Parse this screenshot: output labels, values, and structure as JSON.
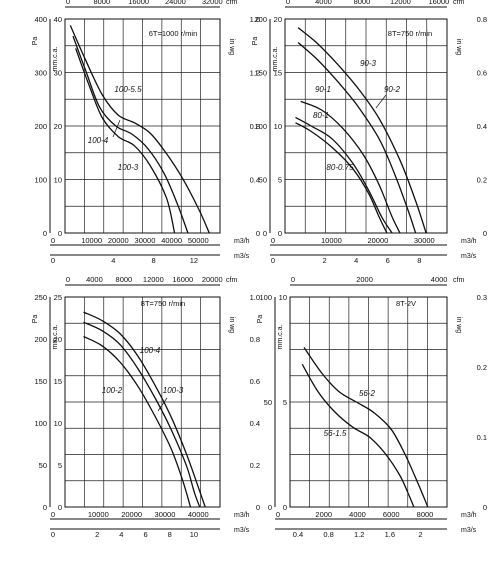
{
  "chart_data": [
    {
      "type": "line",
      "title": "6T=1000 r/min",
      "units": {
        "pa": "Pa",
        "mmca": "mm.c.a.",
        "cfm": "cfm",
        "inwg": "in wg",
        "m3h": "m3/h",
        "m3s": "m3/s"
      },
      "pa_ticks": [
        "400",
        "300",
        "200",
        "100",
        "0"
      ],
      "mm_ticks": [
        "40",
        "30",
        "20",
        "10",
        "0"
      ],
      "inwg_ticks": [
        "1.6",
        "1.2",
        "0.8",
        "0.4",
        "0"
      ],
      "cfm_ticks": [
        "0",
        "8000",
        "16000",
        "24000",
        "32000"
      ],
      "m3h_ticks": [
        "0",
        "10000",
        "20000",
        "30000",
        "40000",
        "50000"
      ],
      "m3s_ticks": [
        "0",
        "4",
        "8",
        "12"
      ],
      "xlim_m3h": [
        0,
        58000
      ],
      "ylim_pa": [
        0,
        400
      ],
      "grid": true,
      "series": [
        {
          "name": "100-5.5",
          "x": [
            2000,
            8000,
            14000,
            20000,
            26000,
            32000,
            38000,
            44000,
            50000,
            54000
          ],
          "y": [
            388,
            320,
            258,
            220,
            206,
            186,
            148,
            102,
            45,
            0
          ]
        },
        {
          "name": "100-4",
          "x": [
            3000,
            8000,
            13000,
            19000,
            25000,
            31000,
            37000,
            42000,
            46000
          ],
          "y": [
            368,
            300,
            235,
            200,
            185,
            158,
            112,
            55,
            0
          ]
        },
        {
          "name": "100-3",
          "x": [
            4000,
            9000,
            14000,
            20000,
            26000,
            32000,
            38000,
            41000
          ],
          "y": [
            345,
            276,
            215,
            180,
            163,
            125,
            65,
            0
          ]
        }
      ]
    },
    {
      "type": "line",
      "title": "8T=750 r/min",
      "units": {
        "pa": "Pa",
        "mmca": "mm.c.a.",
        "cfm": "cfm",
        "inwg": "in wg",
        "m3h": "m3/h",
        "m3s": "m3/s"
      },
      "pa_ticks": [
        "200",
        "150",
        "100",
        "50",
        "0"
      ],
      "mm_ticks": [
        "20",
        "15",
        "10",
        "5",
        "0"
      ],
      "inwg_ticks": [
        "0.8",
        "0.6",
        "0.4",
        "0.2",
        "0"
      ],
      "cfm_ticks": [
        "0",
        "4000",
        "8000",
        "12000",
        "16000"
      ],
      "m3h_ticks": [
        "0",
        "10000",
        "20000",
        "30000"
      ],
      "m3s_ticks": [
        "0",
        "2",
        "4",
        "6",
        "8"
      ],
      "xlim_m3h": [
        0,
        31000
      ],
      "ylim_pa": [
        0,
        200
      ],
      "grid": true,
      "series": [
        {
          "name": "90-3",
          "x": [
            2500,
            6000,
            10000,
            14000,
            18000,
            22000,
            25000,
            27000
          ],
          "y": [
            192,
            178,
            158,
            135,
            107,
            68,
            30,
            0
          ]
        },
        {
          "name": "90-2",
          "x": [
            2500,
            6000,
            10000,
            14000,
            18000,
            21000,
            23500,
            25000
          ],
          "y": [
            178,
            163,
            142,
            118,
            88,
            55,
            22,
            0
          ]
        },
        {
          "name": "90-1",
          "x": [
            3000,
            7000,
            11000,
            15000,
            18000,
            20500,
            22000
          ],
          "y": [
            123,
            115,
            98,
            73,
            45,
            15,
            0
          ]
        },
        {
          "name": "80-1",
          "x": [
            2000,
            5000,
            9000,
            13000,
            16000,
            18500,
            20500
          ],
          "y": [
            108,
            100,
            88,
            65,
            40,
            15,
            0
          ]
        },
        {
          "name": "80-0.75",
          "x": [
            2000,
            5000,
            9000,
            13000,
            16000,
            18000,
            19500
          ],
          "y": [
            103,
            95,
            80,
            60,
            37,
            15,
            0
          ]
        }
      ]
    },
    {
      "type": "line",
      "title": "8T=750 r/min",
      "units": {
        "pa": "Pa",
        "mmca": "mm.c.a.",
        "cfm": "cfm",
        "inwg": "in wg",
        "m3h": "m3/h",
        "m3s": "m3/s"
      },
      "pa_ticks": [
        "250",
        "200",
        "150",
        "100",
        "50",
        "0"
      ],
      "mm_ticks": [
        "25",
        "20",
        "15",
        "10",
        "5",
        "0"
      ],
      "inwg_ticks": [
        "1.0",
        "0.8",
        "0.6",
        "0.4",
        "0.2",
        "0"
      ],
      "cfm_ticks": [
        "0",
        "4000",
        "8000",
        "12000",
        "16000",
        "20000"
      ],
      "m3h_ticks": [
        "0",
        "10000",
        "20000",
        "30000",
        "40000"
      ],
      "m3s_ticks": [
        "0",
        "2",
        "4",
        "6",
        "8",
        "10"
      ],
      "xlim_m3h": [
        0,
        42000
      ],
      "ylim_pa": [
        0,
        250
      ],
      "grid": true,
      "series": [
        {
          "name": "100-4",
          "x": [
            5000,
            10000,
            15000,
            20000,
            25000,
            29000,
            33000,
            36000,
            38000
          ],
          "y": [
            232,
            222,
            206,
            178,
            140,
            105,
            62,
            25,
            0
          ]
        },
        {
          "name": "100-3",
          "x": [
            5000,
            10000,
            15000,
            20000,
            25000,
            29000,
            33000,
            35000,
            36500
          ],
          "y": [
            220,
            210,
            193,
            163,
            125,
            90,
            48,
            18,
            0
          ]
        },
        {
          "name": "100-2",
          "x": [
            5000,
            10000,
            15000,
            20000,
            25000,
            29000,
            32000,
            34000
          ],
          "y": [
            203,
            192,
            172,
            142,
            103,
            67,
            30,
            0
          ]
        }
      ]
    },
    {
      "type": "line",
      "title": "8T-2V",
      "units": {
        "pa": "Pa",
        "mmca": "mm.c.a.",
        "cfm": "cfm",
        "inwg": "in wg",
        "m3h": "m3/h",
        "m3s": "m3/s"
      },
      "pa_ticks": [
        "100",
        "50",
        "0"
      ],
      "mm_ticks": [
        "10",
        "5",
        "0"
      ],
      "inwg_ticks": [
        "0.3",
        "0.2",
        "0.1",
        "0"
      ],
      "cfm_ticks": [
        "0",
        "2000",
        "4000"
      ],
      "m3h_ticks": [
        "0",
        "2000",
        "4000",
        "6000",
        "8000"
      ],
      "m3s_ticks": [
        "0.4",
        "0.8",
        "1.2",
        "1.6",
        "2"
      ],
      "xlim_m3h": [
        0,
        9000
      ],
      "ylim_pa": [
        0,
        100
      ],
      "grid": true,
      "series": [
        {
          "name": "56-2",
          "x": [
            800,
            1800,
            2800,
            3800,
            4800,
            5800,
            6600,
            7300,
            7900
          ],
          "y": [
            76,
            64,
            55,
            50,
            45,
            37,
            25,
            12,
            0
          ]
        },
        {
          "name": "56-1.5",
          "x": [
            700,
            1600,
            2600,
            3600,
            4600,
            5500,
            6300,
            6800,
            7100
          ],
          "y": [
            68,
            55,
            45,
            38,
            33,
            25,
            15,
            6,
            0
          ]
        }
      ]
    }
  ]
}
